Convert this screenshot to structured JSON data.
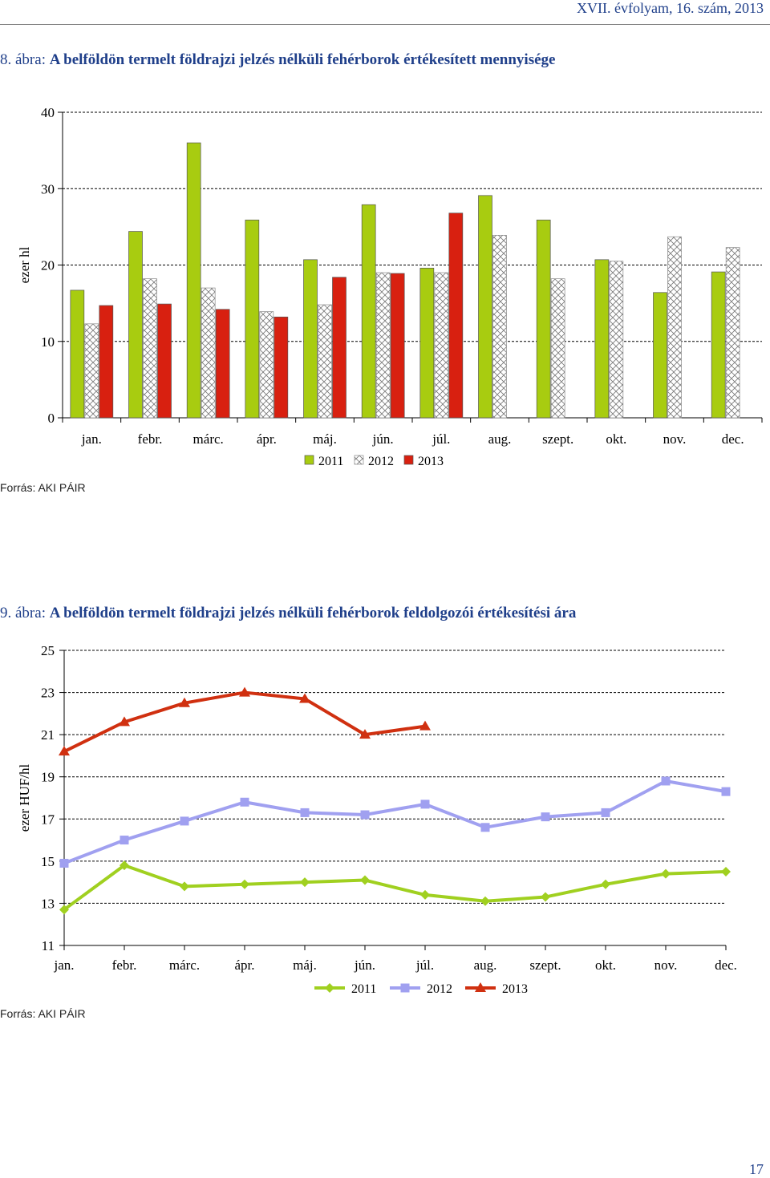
{
  "page": {
    "header": "XVII. évfolyam, 16. szám, 2013",
    "page_number": "17"
  },
  "figure1": {
    "prefix": "8. ábra:",
    "title": "A belföldön termelt földrajzi jelzés nélküli fehérborok értékesített mennyisége",
    "source": "Forrás: AKI PÁIR"
  },
  "figure2": {
    "prefix": "9. ábra:",
    "title": "A belföldön termelt földrajzi jelzés nélküli fehérborok feldolgozói értékesítési ára",
    "source": "Forrás: AKI PÁIR"
  },
  "colors": {
    "s2011_bar": "#a8cc10",
    "s2013_bar": "#d82010",
    "s2011_line": "#a0d020",
    "s2012_line": "#a0a0f0",
    "s2013_line": "#d03010",
    "title": "#1f3f8a"
  },
  "chart_data": [
    {
      "type": "bar",
      "categories": [
        "jan.",
        "febr.",
        "márc.",
        "ápr.",
        "máj.",
        "jún.",
        "júl.",
        "aug.",
        "szept.",
        "okt.",
        "nov.",
        "dec."
      ],
      "ylabel": "ezer hl",
      "ylim": [
        0,
        40
      ],
      "yticks": [
        0,
        10,
        20,
        30,
        40
      ],
      "grid": "dashed horizontal",
      "legend": "bottom-center",
      "series": [
        {
          "name": "2011",
          "style": "solid green",
          "values": [
            16.7,
            24.4,
            36.0,
            25.9,
            20.7,
            27.9,
            19.6,
            29.1,
            25.9,
            20.7,
            16.4,
            19.1
          ]
        },
        {
          "name": "2012",
          "style": "crosshatch",
          "values": [
            12.3,
            18.2,
            17.0,
            13.9,
            14.8,
            19.0,
            19.0,
            23.9,
            18.2,
            20.5,
            23.7,
            22.3
          ]
        },
        {
          "name": "2013",
          "style": "solid red",
          "values": [
            14.7,
            14.9,
            14.2,
            13.2,
            18.4,
            18.9,
            26.8,
            null,
            null,
            null,
            null,
            null
          ]
        }
      ]
    },
    {
      "type": "line",
      "categories": [
        "jan.",
        "febr.",
        "márc.",
        "ápr.",
        "máj.",
        "jún.",
        "júl.",
        "aug.",
        "szept.",
        "okt.",
        "nov.",
        "dec."
      ],
      "ylabel": "ezer HUF/hl",
      "ylim": [
        11,
        25
      ],
      "yticks": [
        11,
        13,
        15,
        17,
        19,
        21,
        23,
        25
      ],
      "grid": "dashed horizontal",
      "legend": "bottom-center",
      "series": [
        {
          "name": "2011",
          "marker": "diamond",
          "values": [
            12.7,
            14.8,
            13.8,
            13.9,
            14.0,
            14.1,
            13.4,
            13.1,
            13.3,
            13.9,
            14.4,
            14.5
          ]
        },
        {
          "name": "2012",
          "marker": "square",
          "values": [
            14.9,
            16.0,
            16.9,
            17.8,
            17.3,
            17.2,
            17.7,
            16.6,
            17.1,
            17.3,
            18.8,
            18.3
          ]
        },
        {
          "name": "2013",
          "marker": "triangle",
          "values": [
            20.2,
            21.6,
            22.5,
            23.0,
            22.7,
            21.0,
            21.4,
            null,
            null,
            null,
            null,
            null
          ]
        }
      ]
    }
  ]
}
